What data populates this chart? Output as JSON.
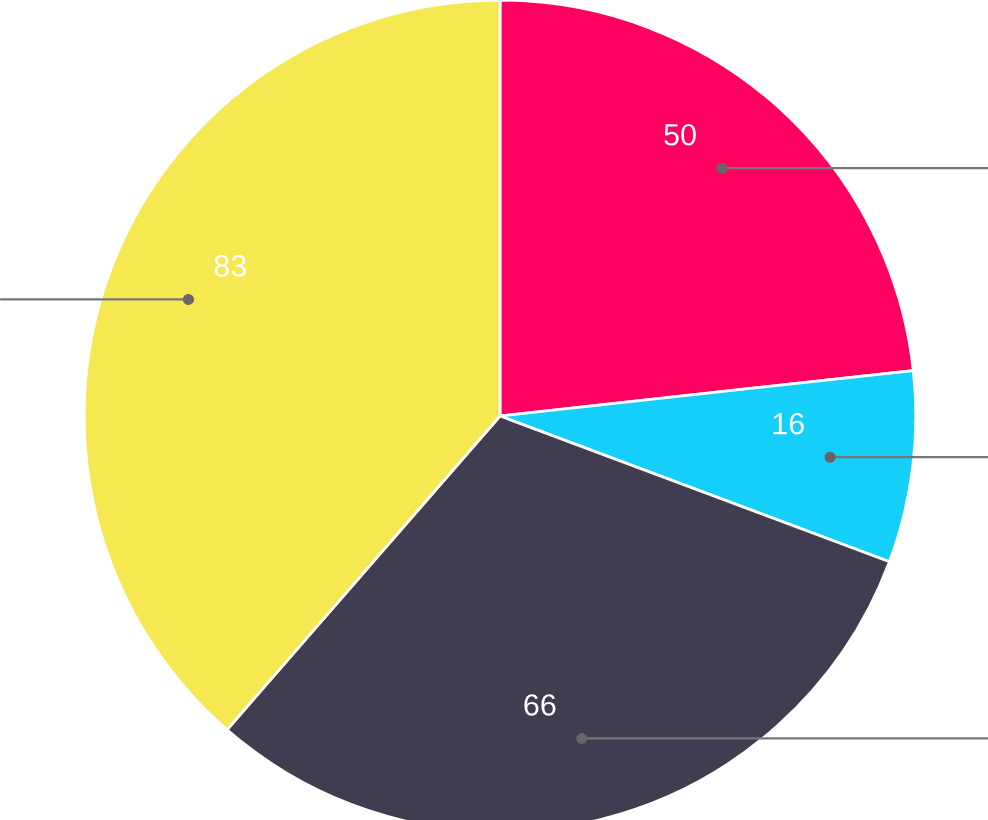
{
  "chart_data": {
    "type": "pie",
    "categories": [
      null,
      null,
      null,
      null
    ],
    "values": [
      50,
      16,
      66,
      83
    ],
    "colors": [
      "#fe0060",
      "#14cffa",
      "#403d51",
      "#f5e851"
    ],
    "data_labels": true
  }
}
